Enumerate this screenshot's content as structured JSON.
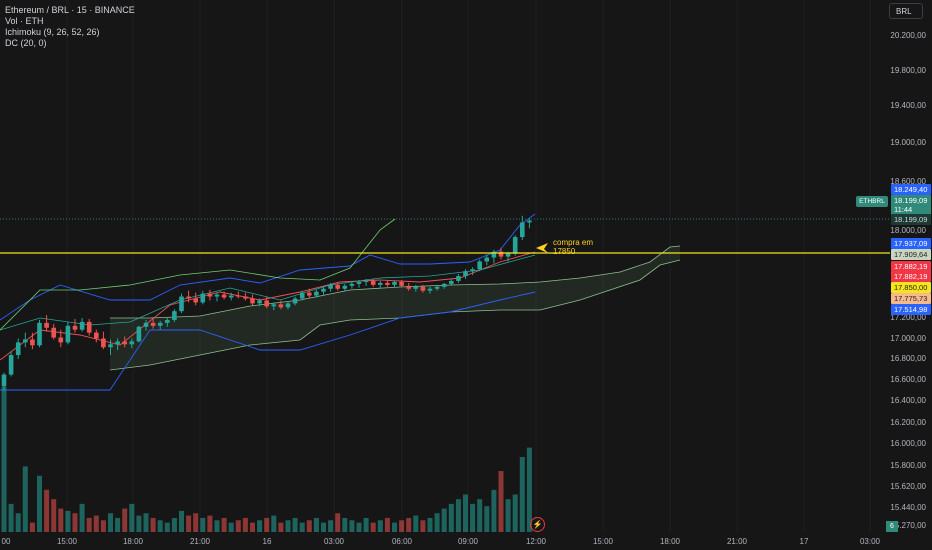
{
  "header": {
    "symbol_line": "Ethereum / BRL · 15 · BINANCE",
    "vol_line": "Vol · ETH",
    "ichimoku_line": "Ichimoku (9, 26, 52, 26)",
    "dc_line": "DC (20, 0)",
    "currency_button": "BRL"
  },
  "price_axis": {
    "labels": [
      "20.200,00",
      "19.800,00",
      "19.400,00",
      "19.000,00",
      "18.600,00",
      "18.000,00",
      "17.200,00",
      "17.000,00",
      "16.800,00",
      "16.600,00",
      "16.400,00",
      "16.200,00",
      "16.000,00",
      "15.800,00",
      "15.620,00",
      "15.440,00",
      "5.270,00"
    ]
  },
  "price_tags": {
    "ethbrl_label": "ETHBRL",
    "high": "18.249,40",
    "current": "18.199,09",
    "countdown": "11:44",
    "current_repeat": "18.199,09",
    "t1": "17.937,09",
    "t2": "17.909,64",
    "t3": "17.882,19",
    "t4": "17.882,19",
    "t5": "17.850,00",
    "t6": "17.775,73",
    "t7": "17.514,98",
    "vol_tag": "6"
  },
  "time_axis": {
    "labels": [
      "00",
      "15:00",
      "18:00",
      "21:00",
      "16",
      "03:00",
      "06:00",
      "09:00",
      "12:00",
      "15:00",
      "18:00",
      "21:00",
      "17",
      "03:00"
    ]
  },
  "annotation": {
    "line1": "compra em",
    "line2": "17850"
  },
  "colors": {
    "up": "#26a69a",
    "down": "#ef5350",
    "horizontal_line": "#f5e51b",
    "annotation": "#ffd21f"
  },
  "chart_data": {
    "type": "candlestick",
    "symbol": "Ethereum / BRL",
    "interval": "15",
    "exchange": "BINANCE",
    "horizontal_line_price": 17850,
    "last_price": 18199.09,
    "candles": [
      [
        16500,
        16640,
        16460,
        16620
      ],
      [
        16620,
        16860,
        16600,
        16820
      ],
      [
        16820,
        16990,
        16780,
        16950
      ],
      [
        16950,
        17050,
        16900,
        16980
      ],
      [
        16980,
        17050,
        16880,
        16920
      ],
      [
        16920,
        17180,
        16900,
        17150
      ],
      [
        17150,
        17230,
        17060,
        17100
      ],
      [
        17100,
        17140,
        16980,
        17000
      ],
      [
        17000,
        17080,
        16900,
        16950
      ],
      [
        16950,
        17160,
        16930,
        17120
      ],
      [
        17120,
        17190,
        17050,
        17080
      ],
      [
        17080,
        17200,
        17060,
        17160
      ],
      [
        17160,
        17190,
        17020,
        17050
      ],
      [
        17050,
        17080,
        16950,
        16990
      ],
      [
        16990,
        17060,
        16880,
        16900
      ],
      [
        16900,
        16980,
        16820,
        16930
      ],
      [
        16930,
        16990,
        16870,
        16960
      ],
      [
        16960,
        17010,
        16900,
        16930
      ],
      [
        16930,
        16990,
        16890,
        16960
      ],
      [
        16960,
        17120,
        16950,
        17110
      ],
      [
        17110,
        17180,
        17070,
        17150
      ],
      [
        17150,
        17210,
        17090,
        17120
      ],
      [
        17120,
        17170,
        17080,
        17150
      ],
      [
        17150,
        17200,
        17110,
        17180
      ],
      [
        17180,
        17290,
        17160,
        17270
      ],
      [
        17270,
        17450,
        17250,
        17420
      ],
      [
        17420,
        17480,
        17360,
        17400
      ],
      [
        17400,
        17460,
        17330,
        17360
      ],
      [
        17360,
        17480,
        17340,
        17450
      ],
      [
        17450,
        17490,
        17380,
        17420
      ],
      [
        17420,
        17460,
        17370,
        17440
      ],
      [
        17440,
        17470,
        17390,
        17410
      ],
      [
        17410,
        17460,
        17380,
        17430
      ],
      [
        17430,
        17470,
        17400,
        17420
      ],
      [
        17420,
        17460,
        17380,
        17400
      ],
      [
        17400,
        17440,
        17330,
        17350
      ],
      [
        17350,
        17400,
        17320,
        17380
      ],
      [
        17380,
        17420,
        17300,
        17320
      ],
      [
        17320,
        17360,
        17280,
        17340
      ],
      [
        17340,
        17380,
        17290,
        17310
      ],
      [
        17310,
        17370,
        17290,
        17350
      ],
      [
        17350,
        17420,
        17330,
        17400
      ],
      [
        17400,
        17480,
        17380,
        17460
      ],
      [
        17460,
        17500,
        17400,
        17430
      ],
      [
        17430,
        17490,
        17410,
        17470
      ],
      [
        17470,
        17520,
        17440,
        17500
      ],
      [
        17500,
        17560,
        17470,
        17540
      ],
      [
        17540,
        17570,
        17480,
        17500
      ],
      [
        17500,
        17550,
        17470,
        17530
      ],
      [
        17530,
        17570,
        17500,
        17550
      ],
      [
        17550,
        17590,
        17510,
        17570
      ],
      [
        17570,
        17600,
        17530,
        17580
      ],
      [
        17580,
        17600,
        17520,
        17540
      ],
      [
        17540,
        17580,
        17500,
        17560
      ],
      [
        17560,
        17590,
        17520,
        17540
      ],
      [
        17540,
        17580,
        17510,
        17570
      ],
      [
        17570,
        17590,
        17520,
        17530
      ],
      [
        17530,
        17560,
        17480,
        17500
      ],
      [
        17500,
        17540,
        17470,
        17520
      ],
      [
        17520,
        17540,
        17460,
        17480
      ],
      [
        17480,
        17520,
        17450,
        17500
      ],
      [
        17500,
        17540,
        17480,
        17520
      ],
      [
        17520,
        17560,
        17500,
        17550
      ],
      [
        17550,
        17600,
        17530,
        17580
      ],
      [
        17580,
        17650,
        17560,
        17630
      ],
      [
        17630,
        17700,
        17600,
        17680
      ],
      [
        17680,
        17720,
        17640,
        17700
      ],
      [
        17700,
        17800,
        17680,
        17780
      ],
      [
        17780,
        17850,
        17740,
        17820
      ],
      [
        17820,
        17900,
        17760,
        17880
      ],
      [
        17880,
        17920,
        17800,
        17830
      ],
      [
        17830,
        17880,
        17780,
        17860
      ],
      [
        17860,
        18050,
        17840,
        18030
      ],
      [
        18030,
        18249,
        18000,
        18180
      ],
      [
        18180,
        18220,
        18120,
        18199
      ]
    ],
    "volumes": [
      310,
      60,
      40,
      140,
      20,
      120,
      90,
      70,
      50,
      45,
      40,
      60,
      30,
      35,
      25,
      40,
      30,
      50,
      60,
      35,
      40,
      30,
      25,
      20,
      30,
      45,
      35,
      40,
      30,
      35,
      25,
      30,
      20,
      25,
      30,
      20,
      25,
      30,
      35,
      20,
      25,
      30,
      20,
      25,
      30,
      20,
      25,
      40,
      30,
      25,
      20,
      30,
      20,
      25,
      30,
      20,
      25,
      30,
      35,
      25,
      30,
      40,
      50,
      60,
      70,
      80,
      60,
      70,
      55,
      90,
      130,
      70,
      80,
      160,
      180
    ]
  }
}
